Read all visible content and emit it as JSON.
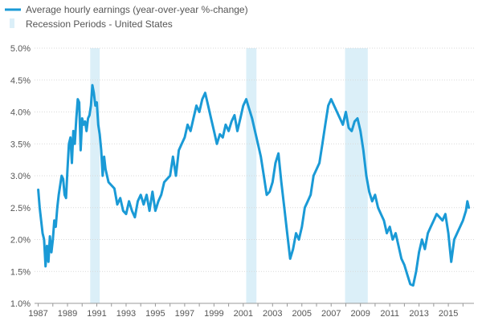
{
  "chart_data": {
    "type": "line",
    "title": "",
    "xlabel": "",
    "ylabel": "",
    "xlim": [
      1986.75,
      2016.75
    ],
    "ylim": [
      1.0,
      5.0
    ],
    "y_ticks": [
      1.0,
      1.5,
      2.0,
      2.5,
      3.0,
      3.5,
      4.0,
      4.5,
      5.0
    ],
    "y_tick_labels": [
      "1.0%",
      "1.5%",
      "2.0%",
      "2.5%",
      "3.0%",
      "3.5%",
      "4.0%",
      "4.5%",
      "5.0%"
    ],
    "x_ticks": [
      1987,
      1989,
      1991,
      1993,
      1995,
      1997,
      1999,
      2001,
      2003,
      2005,
      2007,
      2009,
      2011,
      2013,
      2015
    ],
    "x_tick_labels": [
      "1987",
      "1989",
      "1991",
      "1993",
      "1995",
      "1997",
      "1999",
      "2001",
      "2003",
      "2005",
      "2007",
      "2009",
      "2011",
      "2013",
      "2015"
    ],
    "grid": true,
    "legend_position": "top-left",
    "legend": {
      "line_label": "Average hourly earnings (year-over-year %-change)",
      "recession_label": "Recession Periods - United States"
    },
    "colors": {
      "line": "#1a9ad6",
      "recession": "#dbeff8",
      "grid": "#d9d9d9",
      "axis": "#999999"
    },
    "recessions": [
      {
        "start": 1990.55,
        "end": 1991.2
      },
      {
        "start": 2001.2,
        "end": 2001.9
      },
      {
        "start": 2007.95,
        "end": 2009.5
      }
    ],
    "series": [
      {
        "x": [
          1987.0,
          1987.1,
          1987.2,
          1987.3,
          1987.4,
          1987.5,
          1987.6,
          1987.7,
          1987.8,
          1987.9,
          1988.0,
          1988.1,
          1988.2,
          1988.3,
          1988.4,
          1988.5,
          1988.6,
          1988.7,
          1988.8,
          1988.9,
          1989.0,
          1989.1,
          1989.2,
          1989.3,
          1989.4,
          1989.5,
          1989.6,
          1989.7,
          1989.8,
          1989.9,
          1990.0,
          1990.1,
          1990.2,
          1990.3,
          1990.4,
          1990.5,
          1990.6,
          1990.7,
          1990.8,
          1990.9,
          1991.0,
          1991.1,
          1991.2,
          1991.3,
          1991.4,
          1991.5,
          1991.6,
          1991.8,
          1992.0,
          1992.2,
          1992.4,
          1992.6,
          1992.8,
          1993.0,
          1993.2,
          1993.4,
          1993.6,
          1993.8,
          1994.0,
          1994.2,
          1994.4,
          1994.6,
          1994.8,
          1995.0,
          1995.2,
          1995.4,
          1995.6,
          1995.8,
          1996.0,
          1996.2,
          1996.4,
          1996.6,
          1996.8,
          1997.0,
          1997.2,
          1997.4,
          1997.6,
          1997.8,
          1998.0,
          1998.2,
          1998.4,
          1998.6,
          1998.8,
          1999.0,
          1999.2,
          1999.4,
          1999.6,
          1999.8,
          2000.0,
          2000.2,
          2000.4,
          2000.6,
          2000.8,
          2001.0,
          2001.2,
          2001.4,
          2001.6,
          2001.8,
          2002.0,
          2002.2,
          2002.4,
          2002.6,
          2002.8,
          2003.0,
          2003.2,
          2003.4,
          2003.6,
          2003.8,
          2004.0,
          2004.2,
          2004.4,
          2004.6,
          2004.8,
          2005.0,
          2005.2,
          2005.4,
          2005.6,
          2005.8,
          2006.0,
          2006.2,
          2006.4,
          2006.6,
          2006.8,
          2007.0,
          2007.2,
          2007.4,
          2007.6,
          2007.8,
          2008.0,
          2008.2,
          2008.4,
          2008.6,
          2008.8,
          2009.0,
          2009.2,
          2009.4,
          2009.6,
          2009.8,
          2010.0,
          2010.2,
          2010.4,
          2010.6,
          2010.8,
          2011.0,
          2011.2,
          2011.4,
          2011.6,
          2011.8,
          2012.0,
          2012.2,
          2012.4,
          2012.6,
          2012.8,
          2013.0,
          2013.2,
          2013.4,
          2013.6,
          2013.8,
          2014.0,
          2014.2,
          2014.4,
          2014.6,
          2014.8,
          2015.0,
          2015.2,
          2015.4,
          2015.6,
          2015.8,
          2016.0,
          2016.2,
          2016.3,
          2016.4
        ],
        "y": [
          2.78,
          2.5,
          2.3,
          2.1,
          2.0,
          1.58,
          1.9,
          1.65,
          2.05,
          1.8,
          2.0,
          2.3,
          2.2,
          2.5,
          2.7,
          2.85,
          3.0,
          2.95,
          2.7,
          2.65,
          3.1,
          3.5,
          3.6,
          3.2,
          3.7,
          3.5,
          3.9,
          4.2,
          4.15,
          3.4,
          3.9,
          3.8,
          3.85,
          3.7,
          3.9,
          3.95,
          4.1,
          4.42,
          4.3,
          4.1,
          4.15,
          3.8,
          3.65,
          3.4,
          3.0,
          3.3,
          3.1,
          2.9,
          2.85,
          2.8,
          2.55,
          2.65,
          2.45,
          2.4,
          2.6,
          2.45,
          2.35,
          2.6,
          2.7,
          2.55,
          2.7,
          2.45,
          2.75,
          2.45,
          2.6,
          2.7,
          2.9,
          2.95,
          3.0,
          3.3,
          3.0,
          3.4,
          3.5,
          3.6,
          3.8,
          3.7,
          3.9,
          4.1,
          4.0,
          4.2,
          4.3,
          4.1,
          3.9,
          3.7,
          3.5,
          3.65,
          3.6,
          3.8,
          3.7,
          3.85,
          3.95,
          3.7,
          3.9,
          4.1,
          4.2,
          4.05,
          3.9,
          3.7,
          3.5,
          3.3,
          3.0,
          2.7,
          2.75,
          2.9,
          3.2,
          3.35,
          2.9,
          2.5,
          2.1,
          1.7,
          1.85,
          2.1,
          2.0,
          2.2,
          2.5,
          2.6,
          2.7,
          3.0,
          3.1,
          3.2,
          3.5,
          3.8,
          4.1,
          4.2,
          4.1,
          4.0,
          3.9,
          3.8,
          4.0,
          3.75,
          3.7,
          3.85,
          3.9,
          3.7,
          3.4,
          3.0,
          2.75,
          2.6,
          2.7,
          2.5,
          2.4,
          2.3,
          2.1,
          2.2,
          2.0,
          2.1,
          1.9,
          1.7,
          1.6,
          1.45,
          1.3,
          1.28,
          1.5,
          1.8,
          2.0,
          1.85,
          2.1,
          2.2,
          2.3,
          2.4,
          2.35,
          2.3,
          2.4,
          2.1,
          1.65,
          2.0,
          2.1,
          2.2,
          2.3,
          2.45,
          2.6,
          2.5
        ]
      }
    ]
  }
}
